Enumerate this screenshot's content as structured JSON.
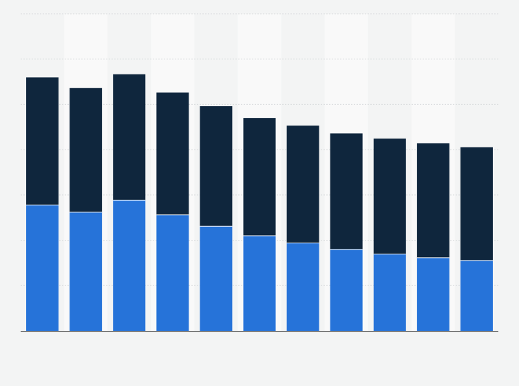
{
  "chart_data": {
    "type": "bar",
    "stacked": true,
    "title": "",
    "xlabel": "",
    "ylabel": "",
    "categories": [
      "",
      "",
      "",
      "",
      "",
      "",
      "",
      "",
      "",
      "",
      ""
    ],
    "ylim": [
      0,
      140
    ],
    "grid": true,
    "legend": "none",
    "series": [
      {
        "color": "#2673d9",
        "values": [
          55.6,
          52.4,
          57.7,
          51.2,
          46.2,
          42.0,
          38.8,
          36.0,
          33.9,
          32.3,
          31.1
        ]
      },
      {
        "color": "#0f263d",
        "values": [
          56.3,
          54.8,
          55.6,
          54.0,
          53.0,
          52.0,
          51.8,
          51.2,
          51.0,
          50.5,
          50.0
        ]
      }
    ]
  }
}
